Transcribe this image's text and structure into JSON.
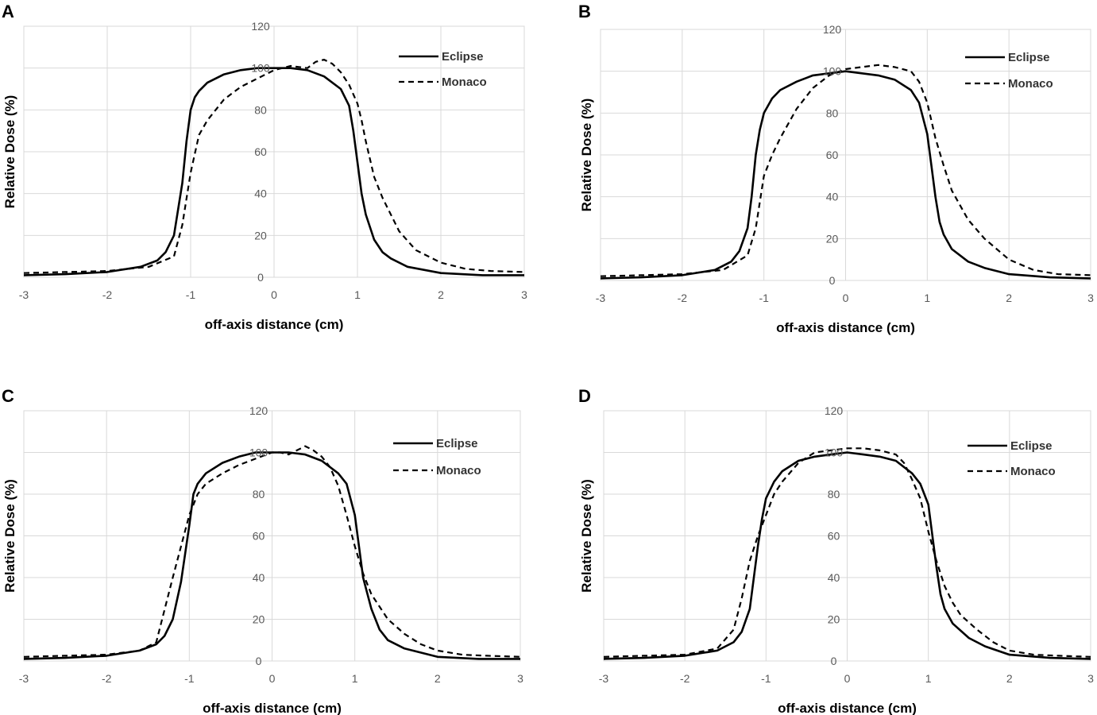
{
  "chart_data": [
    {
      "panel": "A",
      "type": "line",
      "xlabel": "off-axis distance (cm)",
      "ylabel": "Relative Dose (%)",
      "xlim": [
        -3,
        3
      ],
      "ylim": [
        0,
        120
      ],
      "xticks": [
        "-3",
        "-2",
        "-1",
        "0",
        "1",
        "2",
        "3"
      ],
      "yticks": [
        "0",
        "20",
        "40",
        "60",
        "80",
        "100",
        "120"
      ],
      "grid": true,
      "legend": "top-right",
      "series": [
        {
          "name": "Eclipse",
          "style": "solid",
          "x": [
            -3,
            -2.5,
            -2,
            -1.6,
            -1.4,
            -1.3,
            -1.2,
            -1.1,
            -1.05,
            -1.0,
            -0.95,
            -0.9,
            -0.8,
            -0.6,
            -0.4,
            -0.2,
            0,
            0.2,
            0.4,
            0.6,
            0.8,
            0.9,
            0.95,
            1.0,
            1.05,
            1.1,
            1.2,
            1.3,
            1.4,
            1.6,
            2.0,
            2.5,
            3
          ],
          "y": [
            1,
            1.5,
            2.5,
            5,
            8,
            12,
            20,
            45,
            65,
            80,
            86,
            89,
            93,
            97,
            99,
            100,
            100,
            100,
            99,
            96,
            90,
            82,
            70,
            55,
            40,
            30,
            18,
            12,
            9,
            5,
            2,
            1,
            1
          ]
        },
        {
          "name": "Monaco",
          "style": "dashed",
          "x": [
            -3,
            -2.5,
            -2,
            -1.5,
            -1.2,
            -1.1,
            -1.0,
            -0.9,
            -0.8,
            -0.6,
            -0.4,
            -0.2,
            0,
            0.2,
            0.4,
            0.5,
            0.6,
            0.7,
            0.8,
            0.9,
            1.0,
            1.05,
            1.1,
            1.2,
            1.3,
            1.5,
            1.7,
            2.0,
            2.3,
            2.6,
            3
          ],
          "y": [
            2,
            2.5,
            3,
            5,
            10,
            25,
            50,
            68,
            75,
            85,
            91,
            95,
            99,
            101,
            100,
            103,
            104,
            102,
            98,
            92,
            83,
            75,
            65,
            48,
            38,
            22,
            13,
            7,
            4,
            3,
            2.5
          ]
        }
      ]
    },
    {
      "panel": "B",
      "type": "line",
      "xlabel": "off-axis distance (cm)",
      "ylabel": "Relative Dose (%)",
      "xlim": [
        -3,
        3
      ],
      "ylim": [
        0,
        120
      ],
      "xticks": [
        "-3",
        "-2",
        "-1",
        "0",
        "1",
        "2",
        "3"
      ],
      "yticks": [
        "0",
        "20",
        "40",
        "60",
        "80",
        "100",
        "120"
      ],
      "grid": true,
      "legend": "top-right",
      "series": [
        {
          "name": "Eclipse",
          "style": "solid",
          "x": [
            -3,
            -2.5,
            -2,
            -1.6,
            -1.4,
            -1.3,
            -1.2,
            -1.15,
            -1.1,
            -1.05,
            -1.0,
            -0.9,
            -0.8,
            -0.6,
            -0.4,
            -0.2,
            0,
            0.2,
            0.4,
            0.6,
            0.8,
            0.9,
            1.0,
            1.05,
            1.1,
            1.15,
            1.2,
            1.3,
            1.5,
            1.7,
            2.0,
            2.5,
            3
          ],
          "y": [
            1,
            1.5,
            2.5,
            5,
            9,
            14,
            25,
            40,
            60,
            72,
            80,
            87,
            91,
            95,
            98,
            99,
            100,
            99,
            98,
            96,
            91,
            85,
            70,
            55,
            40,
            28,
            22,
            15,
            9,
            6,
            3,
            1.5,
            1
          ]
        },
        {
          "name": "Monaco",
          "style": "dashed",
          "x": [
            -3,
            -2.5,
            -2,
            -1.5,
            -1.2,
            -1.1,
            -1.0,
            -0.9,
            -0.8,
            -0.6,
            -0.4,
            -0.2,
            0,
            0.2,
            0.4,
            0.6,
            0.8,
            0.9,
            1.0,
            1.1,
            1.2,
            1.3,
            1.5,
            1.7,
            2.0,
            2.3,
            2.6,
            3
          ],
          "y": [
            2,
            2.5,
            3,
            5,
            12,
            25,
            50,
            60,
            68,
            82,
            92,
            98,
            101,
            102,
            103,
            102,
            100,
            95,
            85,
            68,
            55,
            43,
            29,
            20,
            10,
            5,
            3,
            2.5
          ]
        }
      ]
    },
    {
      "panel": "C",
      "type": "line",
      "xlabel": "off-axis distance (cm)",
      "ylabel": "Relative Dose (%)",
      "xlim": [
        -3,
        3
      ],
      "ylim": [
        0,
        120
      ],
      "xticks": [
        "-3",
        "-2",
        "-1",
        "0",
        "1",
        "2",
        "3"
      ],
      "yticks": [
        "0",
        "20",
        "40",
        "60",
        "80",
        "100",
        "120"
      ],
      "grid": true,
      "legend": "top-right",
      "series": [
        {
          "name": "Eclipse",
          "style": "solid",
          "x": [
            -3,
            -2.5,
            -2,
            -1.6,
            -1.4,
            -1.3,
            -1.2,
            -1.1,
            -1.0,
            -0.95,
            -0.9,
            -0.8,
            -0.6,
            -0.4,
            -0.2,
            0,
            0.2,
            0.4,
            0.6,
            0.8,
            0.9,
            1.0,
            1.05,
            1.1,
            1.2,
            1.3,
            1.4,
            1.6,
            2.0,
            2.5,
            3
          ],
          "y": [
            1,
            1.5,
            2.5,
            5,
            8,
            12,
            20,
            38,
            65,
            80,
            85,
            90,
            95,
            98,
            100,
            100,
            100,
            99,
            96,
            90,
            85,
            70,
            55,
            40,
            25,
            15,
            10,
            6,
            2,
            1,
            1
          ]
        },
        {
          "name": "Monaco",
          "style": "dashed",
          "x": [
            -3,
            -2.5,
            -2,
            -1.6,
            -1.4,
            -1.2,
            -1.0,
            -0.9,
            -0.8,
            -0.6,
            -0.4,
            -0.2,
            0,
            0.1,
            0.2,
            0.3,
            0.4,
            0.5,
            0.6,
            0.7,
            0.8,
            0.9,
            1.0,
            1.1,
            1.2,
            1.4,
            1.6,
            1.8,
            2.0,
            2.3,
            2.6,
            3
          ],
          "y": [
            2,
            2.5,
            3,
            5,
            9,
            40,
            70,
            80,
            85,
            90,
            94,
            97,
            100,
            100,
            99,
            101,
            103,
            101,
            98,
            93,
            84,
            70,
            55,
            42,
            32,
            20,
            13,
            8,
            5,
            3,
            2.5,
            2
          ]
        }
      ]
    },
    {
      "panel": "D",
      "type": "line",
      "xlabel": "off-axis distance (cm)",
      "ylabel": "Relative Dose (%)",
      "xlim": [
        -3,
        3
      ],
      "ylim": [
        0,
        120
      ],
      "xticks": [
        "-3",
        "-2",
        "-1",
        "0",
        "1",
        "2",
        "3"
      ],
      "yticks": [
        "0",
        "20",
        "40",
        "60",
        "80",
        "100",
        "120"
      ],
      "grid": true,
      "legend": "top-right",
      "series": [
        {
          "name": "Eclipse",
          "style": "solid",
          "x": [
            -3,
            -2.5,
            -2,
            -1.6,
            -1.4,
            -1.3,
            -1.2,
            -1.15,
            -1.1,
            -1.05,
            -1.0,
            -0.9,
            -0.8,
            -0.6,
            -0.4,
            -0.2,
            0,
            0.2,
            0.4,
            0.6,
            0.8,
            0.9,
            1.0,
            1.05,
            1.1,
            1.15,
            1.2,
            1.3,
            1.5,
            1.7,
            2.0,
            2.5,
            3
          ],
          "y": [
            1,
            1.5,
            2.5,
            5,
            9,
            14,
            25,
            40,
            55,
            68,
            78,
            86,
            91,
            96,
            98,
            99,
            100,
            99,
            98,
            96,
            90,
            85,
            75,
            60,
            45,
            32,
            25,
            18,
            11,
            7,
            3,
            1.5,
            1
          ]
        },
        {
          "name": "Monaco",
          "style": "dashed",
          "x": [
            -3,
            -2.5,
            -2,
            -1.6,
            -1.4,
            -1.3,
            -1.2,
            -1.1,
            -1.0,
            -0.9,
            -0.8,
            -0.6,
            -0.4,
            -0.2,
            0,
            0.2,
            0.4,
            0.6,
            0.7,
            0.8,
            0.9,
            1.0,
            1.1,
            1.2,
            1.3,
            1.4,
            1.6,
            1.8,
            2.0,
            2.3,
            2.6,
            3
          ],
          "y": [
            2,
            2.5,
            3,
            6,
            15,
            30,
            48,
            60,
            70,
            80,
            86,
            95,
            100,
            101,
            102,
            102,
            101,
            99,
            95,
            87,
            78,
            62,
            48,
            36,
            28,
            22,
            15,
            9,
            5,
            3,
            2.5,
            2
          ]
        }
      ]
    }
  ]
}
